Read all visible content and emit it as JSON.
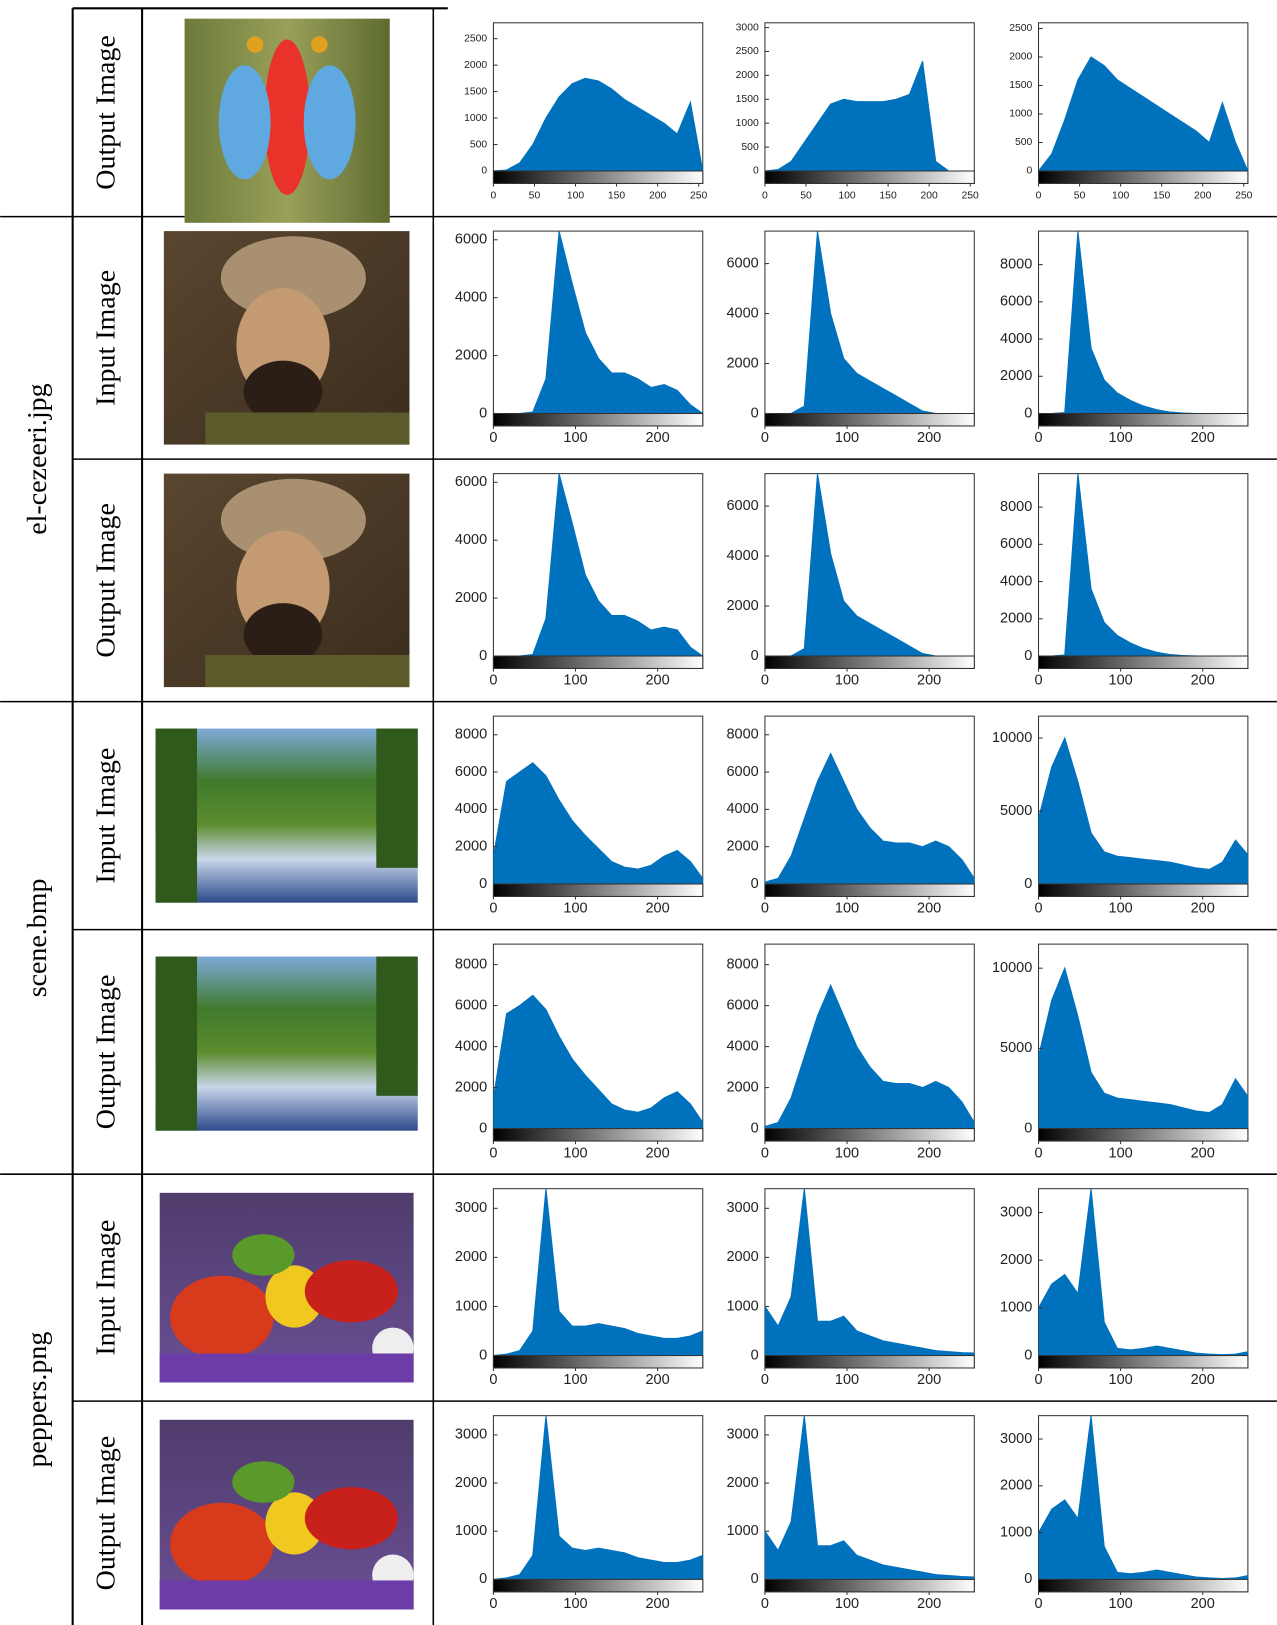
{
  "table": {
    "groups": [
      {
        "rows": [
          {
            "label": "Output Image"
          }
        ]
      },
      {
        "name": "el-cezeeri.jpg",
        "rows": [
          {
            "label": "Input Image"
          },
          {
            "label": "Output Image"
          }
        ]
      },
      {
        "name": "scene.bmp",
        "rows": [
          {
            "label": "Input Image"
          },
          {
            "label": "Output Image"
          }
        ]
      },
      {
        "name": "peppers.png",
        "rows": [
          {
            "label": "Input Image"
          },
          {
            "label": "Output Image"
          }
        ]
      }
    ]
  },
  "chart_data": [
    {
      "type": "area",
      "color": "#0072bd",
      "x": [
        0,
        16,
        32,
        48,
        64,
        80,
        96,
        112,
        128,
        144,
        160,
        176,
        192,
        208,
        224,
        240,
        255
      ],
      "values": [
        0,
        20,
        150,
        500,
        1000,
        1400,
        1650,
        1750,
        1700,
        1550,
        1350,
        1200,
        1050,
        900,
        700,
        1300,
        0
      ],
      "xlim": [
        0,
        255
      ],
      "xticks": [
        0,
        50,
        100,
        150,
        200,
        250
      ],
      "ylim": [
        0,
        2800
      ],
      "yticks": [
        0,
        500,
        1000,
        1500,
        2000,
        2500
      ]
    },
    {
      "type": "area",
      "color": "#0072bd",
      "x": [
        0,
        16,
        32,
        48,
        64,
        80,
        96,
        112,
        128,
        144,
        160,
        176,
        192,
        208,
        224,
        240,
        255
      ],
      "values": [
        0,
        30,
        200,
        600,
        1000,
        1400,
        1500,
        1450,
        1450,
        1450,
        1500,
        1600,
        2300,
        200,
        0,
        0,
        0
      ],
      "xlim": [
        0,
        255
      ],
      "xticks": [
        0,
        50,
        100,
        150,
        200,
        250
      ],
      "ylim": [
        0,
        3100
      ],
      "yticks": [
        0,
        500,
        1000,
        1500,
        2000,
        2500,
        3000
      ]
    },
    {
      "type": "area",
      "color": "#0072bd",
      "x": [
        0,
        16,
        32,
        48,
        64,
        80,
        96,
        112,
        128,
        144,
        160,
        176,
        192,
        208,
        224,
        240,
        255
      ],
      "values": [
        0,
        300,
        900,
        1600,
        2000,
        1850,
        1600,
        1450,
        1300,
        1150,
        1000,
        850,
        700,
        500,
        1200,
        500,
        0
      ],
      "xlim": [
        0,
        255
      ],
      "xticks": [
        0,
        50,
        100,
        150,
        200,
        250
      ],
      "ylim": [
        0,
        2600
      ],
      "yticks": [
        0,
        500,
        1000,
        1500,
        2000,
        2500
      ]
    },
    {
      "type": "area",
      "color": "#0072bd",
      "x": [
        0,
        16,
        32,
        48,
        64,
        80,
        96,
        112,
        128,
        144,
        160,
        176,
        192,
        208,
        224,
        240,
        255
      ],
      "values": [
        0,
        0,
        0,
        50,
        1200,
        6300,
        4500,
        2800,
        1900,
        1400,
        1400,
        1200,
        900,
        1000,
        800,
        300,
        0
      ],
      "xlim": [
        0,
        255
      ],
      "xticks": [
        0,
        100,
        200
      ],
      "ylim": [
        0,
        6300
      ],
      "yticks": [
        0,
        2000,
        4000,
        6000
      ]
    },
    {
      "type": "area",
      "color": "#0072bd",
      "x": [
        0,
        16,
        32,
        48,
        64,
        80,
        96,
        112,
        128,
        144,
        160,
        176,
        192,
        208,
        224,
        240,
        255
      ],
      "values": [
        0,
        0,
        0,
        300,
        7300,
        4000,
        2200,
        1600,
        1300,
        1000,
        700,
        400,
        100,
        0,
        0,
        0,
        0
      ],
      "xlim": [
        0,
        255
      ],
      "xticks": [
        0,
        100,
        200
      ],
      "ylim": [
        0,
        7300
      ],
      "yticks": [
        0,
        2000,
        4000,
        6000
      ]
    },
    {
      "type": "area",
      "color": "#0072bd",
      "x": [
        0,
        16,
        32,
        48,
        64,
        80,
        96,
        112,
        128,
        144,
        160,
        176,
        192,
        208,
        224,
        240,
        255
      ],
      "values": [
        0,
        0,
        50,
        9800,
        3500,
        1800,
        1100,
        700,
        400,
        200,
        80,
        30,
        0,
        0,
        0,
        0,
        0
      ],
      "xlim": [
        0,
        255
      ],
      "xticks": [
        0,
        100,
        200
      ],
      "ylim": [
        0,
        9800
      ],
      "yticks": [
        0,
        2000,
        4000,
        6000,
        8000
      ]
    },
    {
      "type": "area",
      "color": "#0072bd",
      "x": [
        0,
        16,
        32,
        48,
        64,
        80,
        96,
        112,
        128,
        144,
        160,
        176,
        192,
        208,
        224,
        240,
        255
      ],
      "values": [
        0,
        0,
        0,
        50,
        1300,
        6300,
        4600,
        2800,
        1900,
        1400,
        1400,
        1200,
        900,
        1000,
        900,
        300,
        0
      ],
      "xlim": [
        0,
        255
      ],
      "xticks": [
        0,
        100,
        200
      ],
      "ylim": [
        0,
        6300
      ],
      "yticks": [
        0,
        2000,
        4000,
        6000
      ]
    },
    {
      "type": "area",
      "color": "#0072bd",
      "x": [
        0,
        16,
        32,
        48,
        64,
        80,
        96,
        112,
        128,
        144,
        160,
        176,
        192,
        208,
        224,
        240,
        255
      ],
      "values": [
        0,
        0,
        0,
        300,
        7300,
        4100,
        2200,
        1600,
        1300,
        1000,
        700,
        400,
        100,
        0,
        0,
        0,
        0
      ],
      "xlim": [
        0,
        255
      ],
      "xticks": [
        0,
        100,
        200
      ],
      "ylim": [
        0,
        7300
      ],
      "yticks": [
        0,
        2000,
        4000,
        6000
      ]
    },
    {
      "type": "area",
      "color": "#0072bd",
      "x": [
        0,
        16,
        32,
        48,
        64,
        80,
        96,
        112,
        128,
        144,
        160,
        176,
        192,
        208,
        224,
        240,
        255
      ],
      "values": [
        0,
        0,
        50,
        9800,
        3600,
        1800,
        1100,
        700,
        400,
        200,
        80,
        30,
        0,
        0,
        0,
        0,
        0
      ],
      "xlim": [
        0,
        255
      ],
      "xticks": [
        0,
        100,
        200
      ],
      "ylim": [
        0,
        9800
      ],
      "yticks": [
        0,
        2000,
        4000,
        6000,
        8000
      ]
    },
    {
      "type": "area",
      "color": "#0072bd",
      "x": [
        0,
        16,
        32,
        48,
        64,
        80,
        96,
        112,
        128,
        144,
        160,
        176,
        192,
        208,
        224,
        240,
        255
      ],
      "values": [
        1500,
        5500,
        6000,
        6500,
        5800,
        4500,
        3400,
        2600,
        1900,
        1200,
        900,
        800,
        1000,
        1500,
        1800,
        1200,
        300
      ],
      "xlim": [
        0,
        255
      ],
      "xticks": [
        0,
        100,
        200
      ],
      "ylim": [
        0,
        9000
      ],
      "yticks": [
        0,
        2000,
        4000,
        6000,
        8000
      ]
    },
    {
      "type": "area",
      "color": "#0072bd",
      "x": [
        0,
        16,
        32,
        48,
        64,
        80,
        96,
        112,
        128,
        144,
        160,
        176,
        192,
        208,
        224,
        240,
        255
      ],
      "values": [
        100,
        300,
        1500,
        3500,
        5500,
        7000,
        5500,
        4000,
        3000,
        2300,
        2200,
        2200,
        2000,
        2300,
        2000,
        1300,
        300
      ],
      "xlim": [
        0,
        255
      ],
      "xticks": [
        0,
        100,
        200
      ],
      "ylim": [
        0,
        9000
      ],
      "yticks": [
        0,
        2000,
        4000,
        6000,
        8000
      ]
    },
    {
      "type": "area",
      "color": "#0072bd",
      "x": [
        0,
        16,
        32,
        48,
        64,
        80,
        96,
        112,
        128,
        144,
        160,
        176,
        192,
        208,
        224,
        240,
        255
      ],
      "values": [
        4500,
        8000,
        10000,
        7000,
        3500,
        2200,
        1900,
        1800,
        1700,
        1600,
        1500,
        1300,
        1100,
        1000,
        1500,
        3000,
        2000
      ],
      "xlim": [
        0,
        255
      ],
      "xticks": [
        0,
        100,
        200
      ],
      "ylim": [
        0,
        11500
      ],
      "yticks": [
        0,
        5000,
        10000
      ]
    },
    {
      "type": "area",
      "color": "#0072bd",
      "x": [
        0,
        16,
        32,
        48,
        64,
        80,
        96,
        112,
        128,
        144,
        160,
        176,
        192,
        208,
        224,
        240,
        255
      ],
      "values": [
        1500,
        5600,
        6000,
        6500,
        5800,
        4500,
        3400,
        2600,
        1900,
        1200,
        900,
        800,
        1000,
        1500,
        1800,
        1200,
        300
      ],
      "xlim": [
        0,
        255
      ],
      "xticks": [
        0,
        100,
        200
      ],
      "ylim": [
        0,
        9000
      ],
      "yticks": [
        0,
        2000,
        4000,
        6000,
        8000
      ]
    },
    {
      "type": "area",
      "color": "#0072bd",
      "x": [
        0,
        16,
        32,
        48,
        64,
        80,
        96,
        112,
        128,
        144,
        160,
        176,
        192,
        208,
        224,
        240,
        255
      ],
      "values": [
        100,
        300,
        1500,
        3500,
        5500,
        7000,
        5500,
        4000,
        3000,
        2300,
        2200,
        2200,
        2000,
        2300,
        2000,
        1300,
        300
      ],
      "xlim": [
        0,
        255
      ],
      "xticks": [
        0,
        100,
        200
      ],
      "ylim": [
        0,
        9000
      ],
      "yticks": [
        0,
        2000,
        4000,
        6000,
        8000
      ]
    },
    {
      "type": "area",
      "color": "#0072bd",
      "x": [
        0,
        16,
        32,
        48,
        64,
        80,
        96,
        112,
        128,
        144,
        160,
        176,
        192,
        208,
        224,
        240,
        255
      ],
      "values": [
        4500,
        8000,
        10000,
        7000,
        3500,
        2200,
        1900,
        1800,
        1700,
        1600,
        1500,
        1300,
        1100,
        1000,
        1500,
        3100,
        2000
      ],
      "xlim": [
        0,
        255
      ],
      "xticks": [
        0,
        100,
        200
      ],
      "ylim": [
        0,
        11500
      ],
      "yticks": [
        0,
        5000,
        10000
      ]
    },
    {
      "type": "area",
      "color": "#0072bd",
      "x": [
        0,
        16,
        32,
        48,
        64,
        80,
        96,
        112,
        128,
        144,
        160,
        176,
        192,
        208,
        224,
        240,
        255
      ],
      "values": [
        0,
        30,
        100,
        500,
        3400,
        900,
        600,
        600,
        650,
        600,
        550,
        450,
        400,
        350,
        350,
        400,
        500
      ],
      "xlim": [
        0,
        255
      ],
      "xticks": [
        0,
        100,
        200
      ],
      "ylim": [
        0,
        3400
      ],
      "yticks": [
        0,
        1000,
        2000,
        3000
      ]
    },
    {
      "type": "area",
      "color": "#0072bd",
      "x": [
        0,
        16,
        32,
        48,
        64,
        80,
        96,
        112,
        128,
        144,
        160,
        176,
        192,
        208,
        224,
        240,
        255
      ],
      "values": [
        1000,
        600,
        1200,
        3400,
        700,
        700,
        800,
        500,
        400,
        300,
        250,
        200,
        150,
        100,
        80,
        60,
        50
      ],
      "xlim": [
        0,
        255
      ],
      "xticks": [
        0,
        100,
        200
      ],
      "ylim": [
        0,
        3400
      ],
      "yticks": [
        0,
        1000,
        2000,
        3000
      ]
    },
    {
      "type": "area",
      "color": "#0072bd",
      "x": [
        0,
        16,
        32,
        48,
        64,
        80,
        96,
        112,
        128,
        144,
        160,
        176,
        192,
        208,
        224,
        240,
        255
      ],
      "values": [
        1000,
        1500,
        1700,
        1300,
        3500,
        700,
        150,
        120,
        150,
        200,
        150,
        100,
        50,
        30,
        20,
        30,
        80
      ],
      "xlim": [
        0,
        255
      ],
      "xticks": [
        0,
        100,
        200
      ],
      "ylim": [
        0,
        3500
      ],
      "yticks": [
        0,
        1000,
        2000,
        3000
      ]
    },
    {
      "type": "area",
      "color": "#0072bd",
      "x": [
        0,
        16,
        32,
        48,
        64,
        80,
        96,
        112,
        128,
        144,
        160,
        176,
        192,
        208,
        224,
        240,
        255
      ],
      "values": [
        0,
        30,
        100,
        500,
        3400,
        900,
        650,
        600,
        650,
        600,
        550,
        450,
        400,
        350,
        350,
        400,
        500
      ],
      "xlim": [
        0,
        255
      ],
      "xticks": [
        0,
        100,
        200
      ],
      "ylim": [
        0,
        3400
      ],
      "yticks": [
        0,
        1000,
        2000,
        3000
      ]
    },
    {
      "type": "area",
      "color": "#0072bd",
      "x": [
        0,
        16,
        32,
        48,
        64,
        80,
        96,
        112,
        128,
        144,
        160,
        176,
        192,
        208,
        224,
        240,
        255
      ],
      "values": [
        1000,
        600,
        1200,
        3400,
        700,
        700,
        800,
        500,
        400,
        300,
        250,
        200,
        150,
        100,
        80,
        60,
        50
      ],
      "xlim": [
        0,
        255
      ],
      "xticks": [
        0,
        100,
        200
      ],
      "ylim": [
        0,
        3400
      ],
      "yticks": [
        0,
        1000,
        2000,
        3000
      ]
    },
    {
      "type": "area",
      "color": "#0072bd",
      "x": [
        0,
        16,
        32,
        48,
        64,
        80,
        96,
        112,
        128,
        144,
        160,
        176,
        192,
        208,
        224,
        240,
        255
      ],
      "values": [
        1000,
        1500,
        1700,
        1300,
        3500,
        700,
        150,
        120,
        150,
        200,
        150,
        100,
        50,
        30,
        20,
        30,
        80
      ],
      "xlim": [
        0,
        255
      ],
      "xticks": [
        0,
        100,
        200
      ],
      "ylim": [
        0,
        3500
      ],
      "yticks": [
        0,
        1000,
        2000,
        3000
      ]
    }
  ]
}
